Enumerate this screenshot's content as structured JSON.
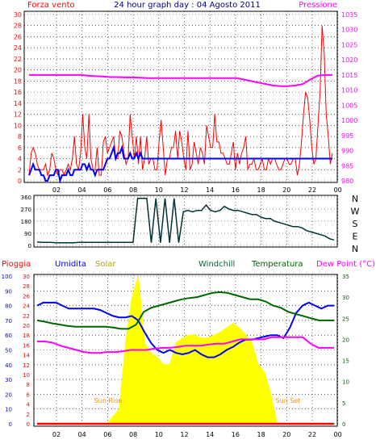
{
  "chart_data": [
    {
      "type": "line",
      "title": "24 hour graph day : 04 Agosto 2011",
      "left_axis_label": "Forza vento",
      "right_axis_label": "Pressione",
      "x_tick_labels": [
        "02",
        "04",
        "06",
        "08",
        "10",
        "12",
        "14",
        "16",
        "18",
        "20",
        "22",
        "00"
      ],
      "left_ticks": [
        "0",
        "2",
        "4",
        "6",
        "8",
        "10",
        "12",
        "14",
        "16",
        "18",
        "20",
        "22",
        "24",
        "26",
        "28",
        "30"
      ],
      "right_ticks": [
        "980",
        "985",
        "990",
        "995",
        "1000",
        "1005",
        "1010",
        "1015",
        "1020",
        "1025",
        "1030",
        "1035"
      ],
      "ylim_left": [
        0,
        30
      ],
      "ylim_right": [
        980,
        1035
      ],
      "grid": true,
      "colors": {
        "gust": "#ff0000",
        "speed": "#0000ff",
        "pressure": "#ff00ff"
      },
      "series": [
        {
          "values": [
            1,
            5,
            6,
            5,
            3,
            2,
            2,
            2,
            3,
            1,
            2,
            5,
            4,
            2,
            1,
            2,
            2,
            1,
            2,
            3,
            2,
            4,
            8,
            3,
            2,
            5,
            12,
            6,
            4,
            12,
            4,
            2,
            2,
            6,
            1,
            1,
            7,
            8,
            5,
            6,
            7,
            8,
            4,
            4,
            9,
            8,
            5,
            3,
            4,
            12,
            8,
            4,
            8,
            3,
            8,
            2,
            4,
            8,
            3,
            4,
            4,
            2,
            2,
            7,
            11,
            6,
            1,
            4,
            4,
            6,
            6,
            9,
            4,
            9,
            7,
            4,
            2,
            9,
            2,
            3,
            7,
            5,
            3,
            6,
            5,
            3,
            10,
            8,
            6,
            6,
            12,
            7,
            7,
            5,
            5,
            4,
            3,
            3,
            5,
            7,
            2,
            5,
            3,
            5,
            6,
            8,
            2,
            3,
            3,
            4,
            2,
            2,
            3,
            4,
            2,
            2,
            4,
            3,
            4,
            4,
            3,
            2,
            2,
            3,
            4,
            4,
            3,
            3,
            4,
            4,
            1,
            3,
            7,
            12,
            16,
            15,
            11,
            6,
            3,
            4,
            10,
            16,
            28,
            23,
            12,
            8,
            3,
            5
          ]
        },
        {
          "values": [
            1,
            2,
            3,
            2,
            2,
            2,
            1,
            1,
            0,
            0,
            1,
            1,
            1,
            2,
            2,
            0,
            1,
            1,
            1,
            2,
            1,
            1,
            2,
            2,
            2,
            2,
            3,
            3,
            2,
            3,
            2,
            2,
            1,
            2,
            2,
            2,
            2,
            3,
            4,
            4,
            5,
            6,
            4,
            5,
            5,
            6,
            4,
            4,
            4,
            5,
            4,
            4,
            5,
            4,
            5,
            4,
            4,
            4,
            4,
            4,
            4,
            4,
            4,
            4,
            4,
            4,
            4,
            4,
            4,
            4,
            4,
            4,
            4,
            4,
            4,
            4,
            4,
            4,
            4,
            4,
            4,
            4,
            4,
            4,
            4,
            4,
            4,
            4,
            4,
            4,
            4,
            4,
            4,
            4,
            4,
            4,
            4,
            4,
            4,
            4,
            4,
            4,
            4,
            4,
            4,
            4,
            4,
            4,
            4,
            4,
            4,
            4,
            4,
            4,
            4,
            4,
            4,
            4,
            4,
            4,
            4,
            4,
            4,
            4,
            4,
            4,
            4,
            4,
            4,
            4,
            4,
            4,
            4,
            4,
            4,
            4,
            4,
            4,
            4,
            4,
            4,
            4,
            4,
            4,
            4,
            4,
            4,
            4
          ]
        },
        {
          "values": [
            1015,
            1015,
            1015,
            1015,
            1015,
            1015,
            1015,
            1015,
            1014.8,
            1014.6,
            1014.5,
            1014.3,
            1014.3,
            1014.2,
            1014.2,
            1014.1,
            1014,
            1014,
            1014,
            1014,
            1014,
            1014,
            1014,
            1014,
            1014,
            1014,
            1014,
            1014,
            1014,
            1013.5,
            1013,
            1012.5,
            1012,
            1011.5,
            1011.3,
            1011.3,
            1011.5,
            1012,
            1013.5,
            1014.8,
            1015,
            1015
          ]
        }
      ]
    },
    {
      "type": "line",
      "right_letters": [
        "N",
        "W",
        "S",
        "E",
        "N"
      ],
      "left_ticks": [
        "0",
        "90",
        "180",
        "270",
        "360"
      ],
      "ylim": [
        0,
        360
      ],
      "grid": true,
      "colors": {
        "direction": "#003333"
      },
      "series": [
        {
          "values": [
            25,
            22,
            22,
            22,
            20,
            20,
            20,
            20,
            20,
            22,
            22,
            22,
            22,
            22,
            22,
            22,
            22,
            22,
            22,
            22,
            22,
            22,
            350,
            350,
            350,
            20,
            350,
            20,
            350,
            20,
            350,
            20,
            250,
            260,
            250,
            260,
            260,
            300,
            260,
            250,
            260,
            290,
            270,
            260,
            260,
            250,
            240,
            230,
            230,
            210,
            200,
            200,
            180,
            170,
            160,
            150,
            140,
            140,
            130,
            110,
            100,
            90,
            80,
            70,
            50,
            40
          ]
        }
      ]
    },
    {
      "type": "line",
      "legend": [
        "Pioggia",
        "Umidita",
        "Solar",
        "Windchill",
        "Temperatura",
        "Dew Point (°C)"
      ],
      "left_ticks_1": [
        "0",
        "10",
        "20",
        "30",
        "40",
        "50",
        "60",
        "70",
        "80",
        "90",
        "100"
      ],
      "left_ticks_2": [
        "0",
        "2",
        "4",
        "6",
        "8",
        "10",
        "12",
        "14",
        "16",
        "18",
        "20",
        "22",
        "24",
        "26",
        "28",
        "30"
      ],
      "right_ticks": [
        "0",
        "5",
        "10",
        "15",
        "20",
        "25",
        "30",
        "35"
      ],
      "x_tick_labels": [
        "02",
        "04",
        "06",
        "08",
        "10",
        "12",
        "14",
        "16",
        "18",
        "20",
        "22",
        "00"
      ],
      "annotations": [
        "Sun Rise",
        "Sun Set"
      ],
      "grid": true,
      "colors": {
        "pioggia": "#ff0000",
        "umidita": "#0000ff",
        "solar": "#ffff00",
        "windchill": "#006633",
        "temperatura": "#006600",
        "dewpoint": "#ff00ff"
      },
      "series": [
        {
          "name": "Umidita",
          "values": [
            80,
            82,
            82,
            82,
            80,
            78,
            78,
            78,
            78,
            78,
            77,
            75,
            73,
            72,
            72,
            73,
            70,
            62,
            55,
            50,
            48,
            50,
            48,
            47,
            48,
            50,
            47,
            45,
            45,
            47,
            50,
            52,
            55,
            57,
            57,
            58,
            59,
            60,
            60,
            58,
            65,
            75,
            80,
            82,
            80,
            78,
            80,
            80
          ]
        },
        {
          "name": "Temperatura",
          "values": [
            24.5,
            24.2,
            23.8,
            23.5,
            23.2,
            23,
            23,
            23,
            23,
            23,
            22.8,
            22.5,
            22.5,
            23.5,
            26.5,
            27.5,
            28,
            28.5,
            29,
            29.5,
            29.8,
            30,
            30.5,
            31,
            31.2,
            31,
            30.5,
            30,
            29.5,
            29.5,
            29,
            28,
            27.5,
            26.5,
            26,
            25.5,
            25,
            24.5,
            24.5,
            24.5
          ]
        },
        {
          "name": "Dew Point (°C)",
          "values": [
            19.5,
            19.5,
            19.2,
            18.5,
            18,
            17.5,
            17,
            16.8,
            16.8,
            17,
            17,
            17.2,
            17.5,
            17.5,
            17.5,
            17.8,
            18,
            18,
            18.2,
            18.5,
            18.5,
            18.5,
            18.8,
            19,
            19,
            19.5,
            20,
            20,
            20,
            20,
            20.5,
            20.5,
            20.5,
            20.5,
            20.5,
            19,
            18,
            18,
            18
          ]
        },
        {
          "name": "Solar",
          "values": [
            0,
            0,
            0,
            0,
            0,
            0,
            0,
            0,
            0,
            0,
            0,
            0,
            5,
            10,
            55,
            85,
            100,
            55,
            48,
            45,
            40,
            40,
            55,
            58,
            60,
            60,
            58,
            58,
            60,
            62,
            65,
            68,
            65,
            60,
            55,
            40,
            35,
            20,
            0,
            0,
            0,
            0,
            0,
            0,
            0,
            0,
            0,
            0
          ]
        },
        {
          "name": "Pioggia",
          "values": [
            0,
            0,
            0,
            0,
            0,
            0,
            0,
            0,
            0,
            0,
            0,
            0,
            0,
            0,
            0,
            0,
            0,
            0,
            0,
            0,
            0,
            0,
            0,
            0,
            0
          ]
        }
      ]
    }
  ]
}
